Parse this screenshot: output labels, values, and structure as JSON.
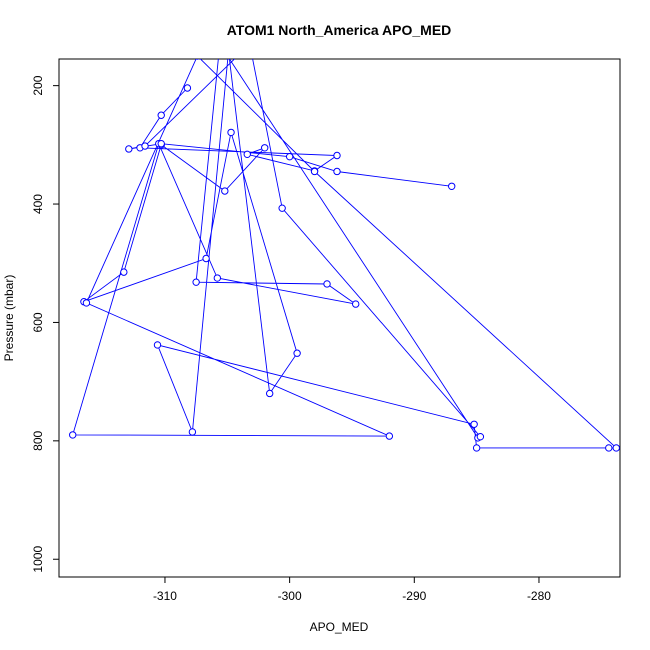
{
  "chart_data": {
    "type": "line",
    "title": "ATOM1 North_America APO_MED",
    "xlabel": "APO_MED",
    "ylabel": "Pressure (mbar)",
    "xlim": [
      -318.5,
      -273.5
    ],
    "ylim": [
      1030,
      155
    ],
    "y_reversed": true,
    "x_ticks": [
      -310,
      -300,
      -290,
      -280
    ],
    "y_ticks": [
      200,
      400,
      600,
      800,
      1000
    ],
    "grid": false,
    "legend": "none",
    "line_color": "#0000ff",
    "marker": "open-circle",
    "series": [
      {
        "x": [
          -308.2,
          -310.3,
          -312.0,
          -296.2,
          -298.0,
          -303.4,
          -302.0,
          -305.2,
          -310.3,
          -313.3,
          -316.5,
          -306.7,
          -304.7,
          -299.4,
          -301.6,
          -304.9,
          -307.8,
          -310.6,
          -285.2,
          -285.0,
          -274.4,
          -273.8,
          -298.0,
          -307.4,
          -316.3,
          -292.0,
          -317.4,
          -310.5,
          -305.8,
          -294.7,
          -297.0,
          -307.5,
          -305.6,
          -284.9,
          -284.7,
          -300.6,
          -303.2,
          -311.6,
          -312.9,
          -310.3,
          -300.0,
          -296.2,
          -287.0
        ],
        "y": [
          204,
          250,
          305,
          318,
          344,
          316,
          305,
          378,
          300,
          515,
          565,
          492,
          279,
          652,
          720,
          142,
          785,
          638,
          772,
          812,
          812,
          812,
          345,
          150,
          567,
          792,
          790,
          298,
          525,
          569,
          535,
          532,
          130,
          795,
          793,
          407,
          130,
          302,
          307,
          298,
          320,
          345,
          370
        ]
      }
    ]
  }
}
